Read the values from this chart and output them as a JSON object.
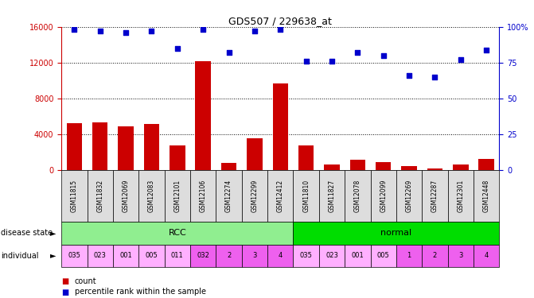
{
  "title": "GDS507 / 229638_at",
  "samples": [
    "GSM11815",
    "GSM11832",
    "GSM12069",
    "GSM12083",
    "GSM12101",
    "GSM12106",
    "GSM12274",
    "GSM12299",
    "GSM12412",
    "GSM11810",
    "GSM11827",
    "GSM12078",
    "GSM12099",
    "GSM12269",
    "GSM12287",
    "GSM12301",
    "GSM12448"
  ],
  "counts": [
    5200,
    5300,
    4900,
    5100,
    2700,
    12200,
    800,
    3500,
    9700,
    2700,
    600,
    1100,
    900,
    400,
    200,
    600,
    1200
  ],
  "percentiles": [
    98,
    97,
    96,
    97,
    85,
    98,
    82,
    97,
    98,
    76,
    76,
    82,
    80,
    66,
    65,
    77,
    84
  ],
  "disease_state_groups": [
    {
      "label": "RCC",
      "start": 0,
      "end": 9,
      "color": "#90EE90"
    },
    {
      "label": "normal",
      "start": 9,
      "end": 17,
      "color": "#00DD00"
    }
  ],
  "individual_labels": [
    "035",
    "023",
    "001",
    "005",
    "011",
    "032",
    "2",
    "3",
    "4",
    "035",
    "023",
    "001",
    "005",
    "1",
    "2",
    "3",
    "4"
  ],
  "individual_colors_light": "#FFB0FF",
  "individual_colors_dark": "#EE60EE",
  "individual_dark_indices": [
    5,
    6,
    7,
    8,
    13,
    14,
    15,
    16
  ],
  "bar_color": "#CC0000",
  "dot_color": "#0000CC",
  "ylim_left": [
    0,
    16000
  ],
  "ylim_right": [
    0,
    100
  ],
  "yticks_left": [
    0,
    4000,
    8000,
    12000,
    16000
  ],
  "yticks_right": [
    0,
    25,
    50,
    75,
    100
  ],
  "ytick_labels_left": [
    "0",
    "4000",
    "8000",
    "12000",
    "16000"
  ],
  "ytick_labels_right": [
    "0",
    "25",
    "50",
    "75",
    "100%"
  ],
  "left_axis_color": "#CC0000",
  "right_axis_color": "#0000CC",
  "background_color": "#FFFFFF",
  "label_disease_state": "disease state",
  "label_individual": "individual",
  "legend_count": "count",
  "legend_percentile": "percentile rank within the sample",
  "xticklabel_bg": "#DDDDDD"
}
